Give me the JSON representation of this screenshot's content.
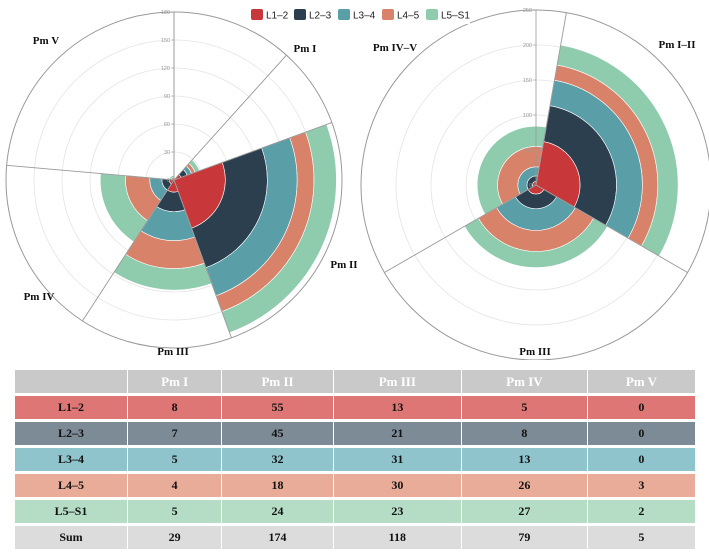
{
  "chart_data": [
    {
      "type": "polar-bar",
      "stacking": "stacked radial bars by segment",
      "radial_axis": {
        "min": 0,
        "max": 180,
        "ticks": [
          0,
          30,
          60,
          90,
          120,
          150,
          180
        ]
      },
      "sectors": [
        "Pm I",
        "Pm II",
        "Pm III",
        "Pm IV",
        "Pm V"
      ],
      "series": [
        {
          "name": "L1–2",
          "values": [
            8,
            55,
            13,
            5,
            0
          ]
        },
        {
          "name": "L2–3",
          "values": [
            7,
            45,
            21,
            8,
            0
          ]
        },
        {
          "name": "L3–4",
          "values": [
            5,
            32,
            31,
            13,
            0
          ]
        },
        {
          "name": "L4–5",
          "values": [
            4,
            18,
            30,
            26,
            3
          ]
        },
        {
          "name": "L5–S1",
          "values": [
            5,
            24,
            23,
            27,
            2
          ]
        }
      ]
    },
    {
      "type": "polar-bar",
      "stacking": "stacked radial bars by segment",
      "radial_axis": {
        "min": 0,
        "max": 250,
        "ticks": [
          0,
          50,
          100,
          150,
          200,
          250
        ]
      },
      "sectors": [
        "Pm I–II",
        "Pm III",
        "Pm IV–V"
      ],
      "series": [
        {
          "name": "L1–2",
          "values": [
            63,
            13,
            5
          ]
        },
        {
          "name": "L2–3",
          "values": [
            52,
            21,
            8
          ]
        },
        {
          "name": "L3–4",
          "values": [
            37,
            31,
            13
          ]
        },
        {
          "name": "L4–5",
          "values": [
            22,
            30,
            29
          ]
        },
        {
          "name": "L5–S1",
          "values": [
            29,
            23,
            29
          ]
        }
      ]
    }
  ],
  "legend": [
    {
      "label": "L1–2",
      "color": "#c8373a"
    },
    {
      "label": "L2–3",
      "color": "#2b3f4e"
    },
    {
      "label": "L3–4",
      "color": "#5a9ea8"
    },
    {
      "label": "L4–5",
      "color": "#d9826a"
    },
    {
      "label": "L5–S1",
      "color": "#8fcbad"
    }
  ],
  "table": {
    "headers": [
      "",
      "Pm I",
      "Pm II",
      "Pm III",
      "Pm IV",
      "Pm V"
    ],
    "rows": [
      {
        "label": "L1–2",
        "values": [
          "8",
          "55",
          "13",
          "5",
          "0"
        ]
      },
      {
        "label": "L2–3",
        "values": [
          "7",
          "45",
          "21",
          "8",
          "0"
        ]
      },
      {
        "label": "L3–4",
        "values": [
          "5",
          "32",
          "31",
          "13",
          "0"
        ]
      },
      {
        "label": "L4–5",
        "values": [
          "4",
          "18",
          "30",
          "26",
          "3"
        ]
      },
      {
        "label": "L5–S1",
        "values": [
          "5",
          "24",
          "23",
          "27",
          "2"
        ]
      },
      {
        "label": "Sum",
        "values": [
          "29",
          "174",
          "118",
          "79",
          "5"
        ]
      }
    ]
  }
}
